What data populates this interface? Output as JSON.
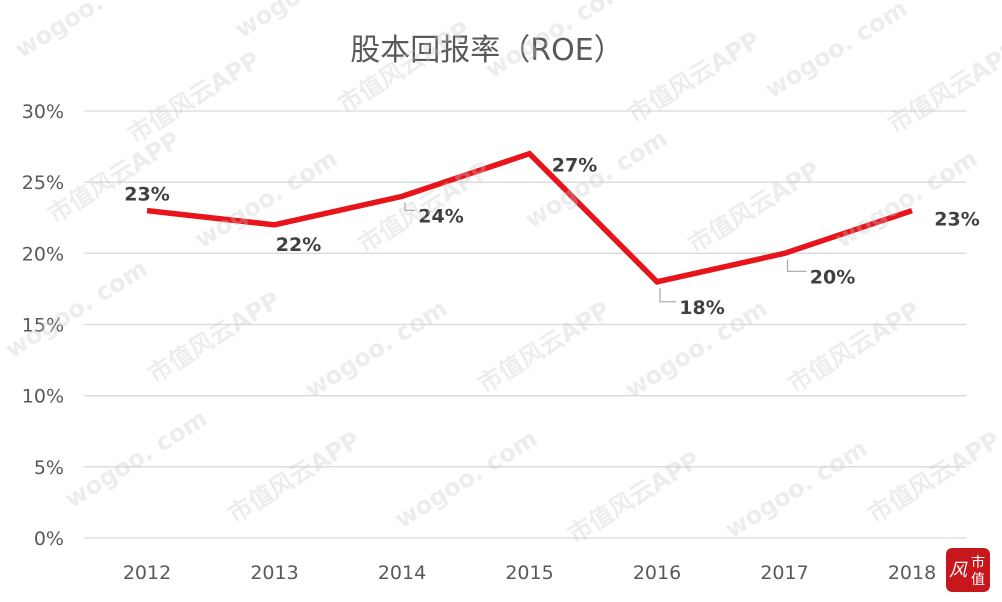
{
  "chart_data": {
    "type": "line",
    "title": "股本回报率（ROE）",
    "xlabel": "",
    "ylabel": "",
    "categories": [
      "2012",
      "2013",
      "2014",
      "2015",
      "2016",
      "2017",
      "2018"
    ],
    "series": [
      {
        "values": [
          23,
          22,
          24,
          27,
          18,
          20,
          23
        ],
        "data_labels": [
          "23%",
          "22%",
          "24%",
          "27%",
          "18%",
          "20%",
          "23%"
        ]
      }
    ],
    "ylim": [
      0,
      30
    ],
    "yticks": [
      0,
      5,
      10,
      15,
      20,
      25,
      30
    ],
    "ytick_labels": [
      "0%",
      "5%",
      "10%",
      "15%",
      "20%",
      "25%",
      "30%"
    ],
    "grid": true,
    "legend": "none",
    "colors": {
      "line": "#e8141b",
      "grid": "#d9d9d9",
      "text": "#595959",
      "label": "#404040"
    }
  },
  "watermark": {
    "text_app": "市值风云APP",
    "text_site": "wogoo. com"
  },
  "seal": {
    "text": "风云市值",
    "color": "#c8161d"
  }
}
